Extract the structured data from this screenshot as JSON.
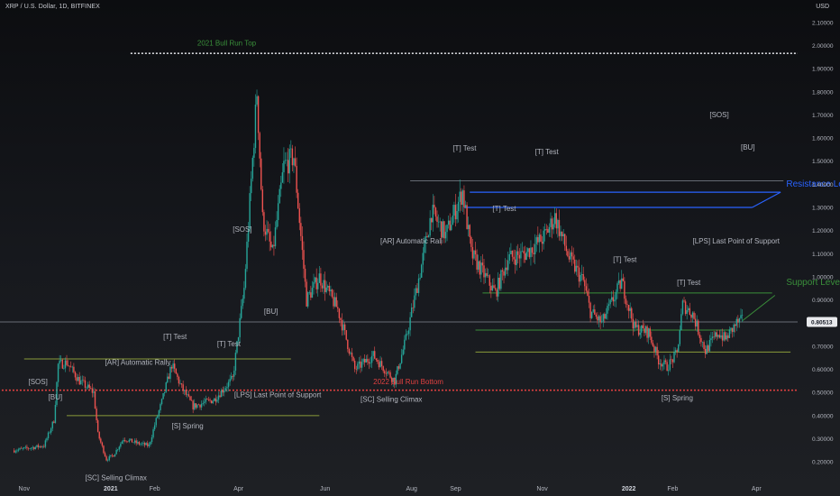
{
  "header": {
    "title": "XRP / U.S. Dollar, 1D, BITFINEX",
    "currency": "USD",
    "last_price": "0.80513"
  },
  "colors": {
    "up": "#26a69a",
    "down": "#ef5350",
    "green": "#3a8f3a",
    "blue": "#2962ff",
    "red": "#e04040",
    "text": "#b2b5be"
  },
  "chart_data": {
    "type": "candlestick",
    "y_axis": {
      "ticks": [
        "2.10000",
        "2.00000",
        "1.90000",
        "1.80000",
        "1.70000",
        "1.60000",
        "1.50000",
        "1.40000",
        "1.30000",
        "1.20000",
        "1.10000",
        "1.00000",
        "0.90000",
        "0.80000",
        "0.70000",
        "0.60000",
        "0.50000",
        "0.40000",
        "0.30000",
        "0.20000"
      ],
      "range": [
        0.15,
        2.15
      ]
    },
    "x_axis": {
      "ticks": [
        {
          "label": "Nov",
          "date": "2020-11-01",
          "bold": false
        },
        {
          "label": "2021",
          "date": "2021-01-01",
          "bold": true
        },
        {
          "label": "Feb",
          "date": "2021-02-01",
          "bold": false
        },
        {
          "label": "Apr",
          "date": "2021-04-01",
          "bold": false
        },
        {
          "label": "Jun",
          "date": "2021-06-01",
          "bold": false
        },
        {
          "label": "Aug",
          "date": "2021-08-01",
          "bold": false
        },
        {
          "label": "Sep",
          "date": "2021-09-01",
          "bold": false
        },
        {
          "label": "Nov",
          "date": "2021-11-01",
          "bold": false
        },
        {
          "label": "2022",
          "date": "2022-01-01",
          "bold": true
        },
        {
          "label": "Feb",
          "date": "2022-02-01",
          "bold": false
        },
        {
          "label": "Apr",
          "date": "2022-04-01",
          "bold": false
        }
      ]
    },
    "price_path": [
      [
        "2020-10-25",
        0.25
      ],
      [
        "2020-11-15",
        0.27
      ],
      [
        "2020-11-22",
        0.38
      ],
      [
        "2020-11-25",
        0.62
      ],
      [
        "2020-12-01",
        0.63
      ],
      [
        "2020-12-10",
        0.55
      ],
      [
        "2020-12-20",
        0.5
      ],
      [
        "2020-12-23",
        0.32
      ],
      [
        "2020-12-29",
        0.21
      ],
      [
        "2021-01-03",
        0.23
      ],
      [
        "2021-01-10",
        0.3
      ],
      [
        "2021-01-20",
        0.28
      ],
      [
        "2021-01-28",
        0.27
      ],
      [
        "2021-02-01",
        0.36
      ],
      [
        "2021-02-06",
        0.46
      ],
      [
        "2021-02-13",
        0.62
      ],
      [
        "2021-02-20",
        0.52
      ],
      [
        "2021-02-28",
        0.44
      ],
      [
        "2021-03-15",
        0.47
      ],
      [
        "2021-03-28",
        0.56
      ],
      [
        "2021-04-05",
        0.95
      ],
      [
        "2021-04-12",
        1.6
      ],
      [
        "2021-04-14",
        1.8
      ],
      [
        "2021-04-18",
        1.25
      ],
      [
        "2021-04-25",
        1.1
      ],
      [
        "2021-05-03",
        1.48
      ],
      [
        "2021-05-10",
        1.52
      ],
      [
        "2021-05-19",
        0.9
      ],
      [
        "2021-05-28",
        1.0
      ],
      [
        "2021-06-10",
        0.86
      ],
      [
        "2021-06-22",
        0.6
      ],
      [
        "2021-07-05",
        0.66
      ],
      [
        "2021-07-20",
        0.55
      ],
      [
        "2021-07-28",
        0.73
      ],
      [
        "2021-08-08",
        1.05
      ],
      [
        "2021-08-15",
        1.28
      ],
      [
        "2021-08-25",
        1.18
      ],
      [
        "2021-09-06",
        1.37
      ],
      [
        "2021-09-12",
        1.1
      ],
      [
        "2021-09-22",
        1.0
      ],
      [
        "2021-09-29",
        0.93
      ],
      [
        "2021-10-08",
        1.08
      ],
      [
        "2021-10-20",
        1.1
      ],
      [
        "2021-11-02",
        1.17
      ],
      [
        "2021-11-10",
        1.26
      ],
      [
        "2021-11-20",
        1.08
      ],
      [
        "2021-11-30",
        0.98
      ],
      [
        "2021-12-05",
        0.85
      ],
      [
        "2021-12-13",
        0.8
      ],
      [
        "2021-12-27",
        0.98
      ],
      [
        "2022-01-05",
        0.78
      ],
      [
        "2022-01-15",
        0.76
      ],
      [
        "2022-01-22",
        0.64
      ],
      [
        "2022-01-28",
        0.61
      ],
      [
        "2022-02-04",
        0.67
      ],
      [
        "2022-02-08",
        0.88
      ],
      [
        "2022-02-15",
        0.84
      ],
      [
        "2022-02-24",
        0.68
      ],
      [
        "2022-03-05",
        0.76
      ],
      [
        "2022-03-10",
        0.73
      ],
      [
        "2022-03-18",
        0.8
      ],
      [
        "2022-03-22",
        0.81
      ]
    ],
    "horizontal_lines": [
      {
        "name": "2021 Bull Run Top",
        "price": 1.966,
        "from": "2021-01-15",
        "to": "2022-06-01",
        "style": "dotted",
        "color": "white"
      },
      {
        "name": "2022 Bull Run bottom",
        "price": 0.51,
        "from": "2020-10-01",
        "to": "2022-06-01",
        "style": "dotted",
        "color": "red"
      },
      {
        "name": "current price",
        "price": 0.80513,
        "from": "2020-10-01",
        "to": "2022-06-01",
        "style": "solid",
        "color": "grey"
      },
      {
        "name": "resistance-2021",
        "price": 0.645,
        "from": "2020-11-01",
        "to": "2021-05-08",
        "style": "solid",
        "color": "olive"
      },
      {
        "name": "support-2021",
        "price": 0.4,
        "from": "2020-12-01",
        "to": "2021-05-28",
        "style": "solid",
        "color": "olive"
      },
      {
        "name": "resistance-top",
        "price": 1.415,
        "from": "2021-07-31",
        "to": "2022-04-20",
        "style": "solid",
        "color": "grey"
      },
      {
        "name": "support-upper",
        "price": 0.93,
        "from": "2021-09-20",
        "to": "2022-04-12",
        "style": "solid",
        "color": "green"
      },
      {
        "name": "support-mid",
        "price": 0.77,
        "from": "2021-09-15",
        "to": "2022-03-15",
        "style": "solid",
        "color": "green"
      },
      {
        "name": "support-lower",
        "price": 0.675,
        "from": "2021-09-15",
        "to": "2022-04-25",
        "style": "solid",
        "color": "olive"
      }
    ],
    "resistance_channel": {
      "top": {
        "price": 1.366,
        "from": "2021-09-11",
        "to": "2022-04-18"
      },
      "bottom": {
        "price": 1.3,
        "from": "2021-09-07",
        "to": "2022-03-29"
      },
      "connector_top_price": 1.366
    },
    "support_trendline": {
      "from": [
        "2022-03-22",
        0.81
      ],
      "to": [
        "2022-04-14",
        0.92
      ]
    },
    "annotations": [
      {
        "text": "2021 Bull Run Top",
        "date": "2021-03-03",
        "price": 2.0,
        "color": "green"
      },
      {
        "text": "2022 Bull Run Bottom",
        "date": "2021-07-05",
        "price": 0.535,
        "color": "red"
      },
      {
        "text": "Resistance Levels",
        "date": "2022-04-22",
        "price": 1.39,
        "color": "blue"
      },
      {
        "text": "Support Levels",
        "date": "2022-04-22",
        "price": 0.965,
        "color": "green"
      },
      {
        "text": "[SOS]",
        "date": "2020-11-04",
        "price": 0.535,
        "color": "text"
      },
      {
        "text": "[BU]",
        "date": "2020-11-18",
        "price": 0.47,
        "color": "text"
      },
      {
        "text": "[AR] Automatic Rally",
        "date": "2020-12-28",
        "price": 0.62,
        "color": "text"
      },
      {
        "text": "[SC] Selling Climax",
        "date": "2020-12-14",
        "price": 0.12,
        "color": "text"
      },
      {
        "text": "[S] Spring",
        "date": "2021-02-13",
        "price": 0.345,
        "color": "text"
      },
      {
        "text": "[T] Test",
        "date": "2021-02-07",
        "price": 0.73,
        "color": "text"
      },
      {
        "text": "[T] Test",
        "date": "2021-03-17",
        "price": 0.7,
        "color": "text"
      },
      {
        "text": "[LPS] Last Point of Support",
        "date": "2021-03-29",
        "price": 0.48,
        "color": "text"
      },
      {
        "text": "[SOS]",
        "date": "2021-03-28",
        "price": 1.195,
        "color": "text"
      },
      {
        "text": "[BU]",
        "date": "2021-04-19",
        "price": 0.84,
        "color": "text"
      },
      {
        "text": "[SC] Selling Climax",
        "date": "2021-06-26",
        "price": 0.46,
        "color": "text"
      },
      {
        "text": "[AR] Automatic Rali",
        "date": "2021-07-10",
        "price": 1.145,
        "color": "text"
      },
      {
        "text": "[T] Test",
        "date": "2021-08-30",
        "price": 1.545,
        "color": "text"
      },
      {
        "text": "[T] Test",
        "date": "2021-09-27",
        "price": 1.285,
        "color": "text"
      },
      {
        "text": "[T] Test",
        "date": "2021-10-27",
        "price": 1.53,
        "color": "text"
      },
      {
        "text": "[T] Test",
        "date": "2021-12-21",
        "price": 1.065,
        "color": "text"
      },
      {
        "text": "[T] Test",
        "date": "2022-02-04",
        "price": 0.965,
        "color": "text"
      },
      {
        "text": "[S] Spring",
        "date": "2022-01-24",
        "price": 0.465,
        "color": "text"
      },
      {
        "text": "[LPS] Last Point of Support",
        "date": "2022-02-15",
        "price": 1.145,
        "color": "text"
      },
      {
        "text": "[SOS]",
        "date": "2022-02-27",
        "price": 1.69,
        "color": "text"
      },
      {
        "text": "[BU]",
        "date": "2022-03-21",
        "price": 1.55,
        "color": "text"
      }
    ]
  }
}
